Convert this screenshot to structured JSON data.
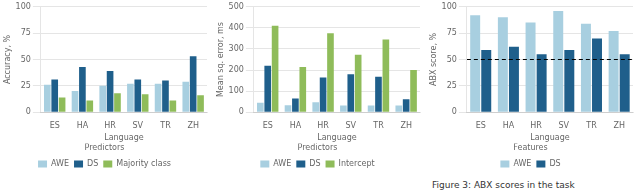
{
  "chart_data": [
    {
      "type": "bar",
      "x_label": "Language",
      "y_label": "Accuracy, %",
      "categories": [
        "ES",
        "HA",
        "HR",
        "SV",
        "TR",
        "ZH"
      ],
      "series": [
        {
          "name": "AWE",
          "color": "#a8cfe0",
          "values": [
            26,
            20,
            25,
            27,
            27,
            29
          ]
        },
        {
          "name": "DS",
          "color": "#1f5f8b",
          "values": [
            31,
            43,
            39,
            31,
            30,
            53
          ]
        },
        {
          "name": "Majority class",
          "color": "#8fbc5a",
          "values": [
            14,
            11,
            18,
            17,
            11,
            16
          ]
        }
      ],
      "ylim": [
        0,
        100
      ],
      "yticks": [
        0,
        25,
        50,
        75,
        100
      ],
      "grid": true,
      "legend": "bottom",
      "legend_title": "Predictors"
    },
    {
      "type": "bar",
      "x_label": "Language",
      "y_label": "Mean sq. error, ms",
      "categories": [
        "ES",
        "HA",
        "HR",
        "SV",
        "TR",
        "ZH"
      ],
      "series": [
        {
          "name": "AWE",
          "color": "#a8cfe0",
          "values": [
            45,
            33,
            47,
            32,
            32,
            32
          ]
        },
        {
          "name": "DS",
          "color": "#1f5f8b",
          "values": [
            220,
            65,
            165,
            180,
            168,
            62
          ]
        },
        {
          "name": "Intercept",
          "color": "#8fbc5a",
          "values": [
            410,
            215,
            375,
            273,
            345,
            200
          ]
        }
      ],
      "ylim": [
        0,
        500
      ],
      "yticks": [
        0,
        100,
        200,
        300,
        400,
        500
      ],
      "grid": true,
      "legend": "bottom",
      "legend_title": "Predictors"
    },
    {
      "type": "bar",
      "x_label": "Language",
      "y_label": "ABX score, %",
      "categories": [
        "ES",
        "HA",
        "HR",
        "SV",
        "TR",
        "ZH"
      ],
      "series": [
        {
          "name": "AWE",
          "color": "#a8cfe0",
          "values": [
            92,
            90,
            85,
            96,
            84,
            77
          ]
        },
        {
          "name": "DS",
          "color": "#1f5f8b",
          "values": [
            59,
            62,
            55,
            59,
            70,
            55
          ]
        }
      ],
      "ylim": [
        0,
        100
      ],
      "yticks": [
        0,
        25,
        50,
        75,
        100
      ],
      "grid": true,
      "legend": "bottom",
      "legend_title": "Features",
      "annotations": [
        {
          "type": "hline",
          "y": 50,
          "line_style": "dashed",
          "color": "#000000"
        },
        {
          "type": "text",
          "text": "Figure 3: ABX scores in the task"
        }
      ]
    }
  ]
}
